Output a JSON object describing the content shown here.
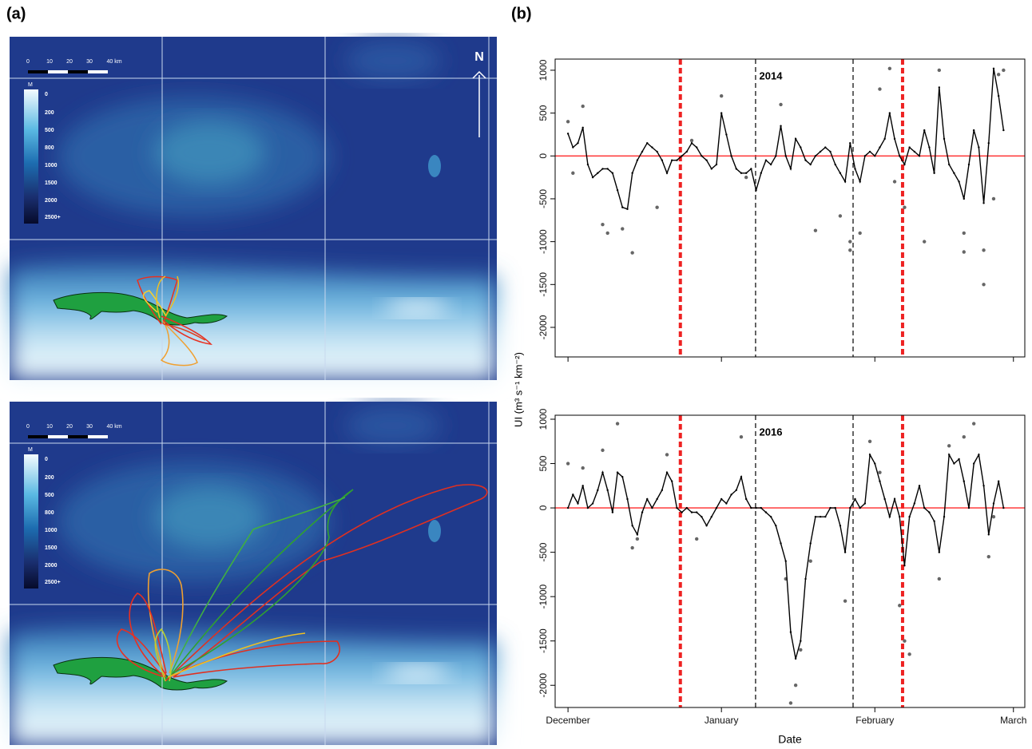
{
  "panel_labels": [
    "(a)",
    "(b)"
  ],
  "maps": [
    {
      "scale": [
        "0",
        "10",
        "20",
        "30",
        "40 km"
      ],
      "legend_title": "M",
      "legend": [
        "0",
        "200",
        "500",
        "800",
        "1000",
        "1500",
        "2000",
        "2500+"
      ],
      "north": "N"
    },
    {
      "scale": [
        "0",
        "10",
        "20",
        "30",
        "40 km"
      ],
      "legend_title": "M",
      "legend": [
        "0",
        "200",
        "500",
        "800",
        "1000",
        "1500",
        "2000",
        "2500+"
      ]
    }
  ],
  "chart_data": [
    {
      "type": "line",
      "title": "2014",
      "x": [
        0,
        1,
        2,
        3,
        4,
        5,
        6,
        7,
        8,
        9,
        10,
        11,
        12,
        13,
        14,
        15,
        16,
        17,
        18,
        19,
        20,
        21,
        22,
        23,
        24,
        25,
        26,
        27,
        28,
        29,
        30,
        31,
        32,
        33,
        34,
        35,
        36,
        37,
        38,
        39,
        40,
        41,
        42,
        43,
        44,
        45,
        46,
        47,
        48,
        49,
        50,
        51,
        52,
        53,
        54,
        55,
        56,
        57,
        58,
        59,
        60,
        61,
        62,
        63,
        64,
        65,
        66,
        67,
        68,
        69,
        70,
        71,
        72,
        73,
        74,
        75,
        76,
        77,
        78,
        79,
        80,
        81,
        82,
        83,
        84,
        85,
        86,
        87,
        88
      ],
      "values": [
        260,
        100,
        150,
        330,
        -100,
        -250,
        -200,
        -150,
        -150,
        -200,
        -400,
        -600,
        -620,
        -200,
        -50,
        50,
        150,
        100,
        50,
        -50,
        -200,
        -50,
        -50,
        0,
        50,
        150,
        100,
        0,
        -50,
        -150,
        -100,
        500,
        250,
        0,
        -150,
        -200,
        -200,
        -150,
        -400,
        -200,
        -50,
        -100,
        0,
        350,
        0,
        -150,
        200,
        100,
        -50,
        -100,
        0,
        50,
        100,
        50,
        -100,
        -200,
        -300,
        150,
        -150,
        -300,
        0,
        50,
        0,
        100,
        200,
        500,
        200,
        0,
        -100,
        100,
        50,
        0,
        300,
        100,
        -200,
        800,
        200,
        -100,
        -200,
        -300,
        -500,
        -100,
        300,
        100,
        -550,
        150,
        1020,
        700,
        300
      ],
      "color": "#000000",
      "points": {
        "color": "#666666",
        "x": [
          0,
          1,
          3,
          7,
          8,
          11,
          13,
          18,
          25,
          31,
          36,
          43,
          50,
          55,
          57,
          57,
          59,
          63,
          65,
          66,
          68,
          72,
          75,
          80,
          80,
          84,
          84,
          86,
          87,
          88
        ],
        "y": [
          400,
          -200,
          580,
          -800,
          -900,
          -850,
          -1130,
          -600,
          180,
          700,
          -250,
          600,
          -870,
          -700,
          -1100,
          -1000,
          -900,
          780,
          1020,
          -300,
          -600,
          -1000,
          1000,
          -1120,
          -900,
          -1500,
          -1100,
          -500,
          950,
          1000
        ]
      },
      "xlim": [
        -2.6,
        92.3
      ],
      "xticks": [
        0,
        31,
        62,
        90
      ],
      "ylim": [
        -2345,
        1130
      ],
      "yticks": [
        1000,
        500,
        0,
        -500,
        -1000,
        -1500,
        -2000
      ],
      "hline": {
        "value": 0,
        "color": "#ff2a2a"
      },
      "vlines": [
        {
          "x": 22.7,
          "color": "#ee2222",
          "width": 4
        },
        {
          "x": 37.9,
          "color": "#000000",
          "width": 1.2
        },
        {
          "x": 57.6,
          "color": "#000000",
          "width": 1.2
        },
        {
          "x": 67.6,
          "color": "#ee2222",
          "width": 4
        }
      ]
    },
    {
      "type": "line",
      "title": "2016",
      "x": [
        0,
        1,
        2,
        3,
        4,
        5,
        6,
        7,
        8,
        9,
        10,
        11,
        12,
        13,
        14,
        15,
        16,
        17,
        18,
        19,
        20,
        21,
        22,
        23,
        24,
        25,
        26,
        27,
        28,
        29,
        30,
        31,
        32,
        33,
        34,
        35,
        36,
        37,
        38,
        39,
        40,
        41,
        42,
        43,
        44,
        45,
        46,
        47,
        48,
        49,
        50,
        51,
        52,
        53,
        54,
        55,
        56,
        57,
        58,
        59,
        60,
        61,
        62,
        63,
        64,
        65,
        66,
        67,
        68,
        69,
        70,
        71,
        72,
        73,
        74,
        75,
        76,
        77,
        78,
        79,
        80,
        81,
        82,
        83,
        84,
        85,
        86,
        87,
        88
      ],
      "values": [
        0,
        150,
        50,
        250,
        0,
        50,
        200,
        400,
        200,
        -50,
        400,
        350,
        100,
        -200,
        -300,
        -50,
        100,
        0,
        100,
        200,
        400,
        300,
        0,
        -50,
        0,
        -50,
        -50,
        -100,
        -200,
        -100,
        0,
        100,
        50,
        150,
        200,
        350,
        100,
        0,
        0,
        0,
        -50,
        -100,
        -200,
        -400,
        -600,
        -1400,
        -1700,
        -1500,
        -800,
        -400,
        -100,
        -100,
        -100,
        0,
        0,
        -200,
        -500,
        0,
        100,
        0,
        50,
        600,
        500,
        300,
        100,
        -100,
        100,
        -100,
        -650,
        -100,
        50,
        250,
        0,
        -50,
        -150,
        -500,
        -100,
        600,
        500,
        550,
        300,
        0,
        500,
        600,
        250,
        -300,
        50,
        300,
        0
      ],
      "color": "#000000",
      "points": {
        "color": "#666666",
        "x": [
          0,
          3,
          7,
          10,
          13,
          14,
          20,
          26,
          35,
          44,
          45,
          46,
          47,
          49,
          56,
          61,
          63,
          68,
          67,
          69,
          75,
          77,
          80,
          82,
          85,
          86
        ],
        "y": [
          500,
          450,
          650,
          950,
          -450,
          -350,
          600,
          -350,
          800,
          -800,
          -2200,
          -2000,
          -1600,
          -600,
          -1050,
          750,
          400,
          -1500,
          -1100,
          -1650,
          -800,
          700,
          800,
          950,
          -550,
          -100
        ]
      },
      "xlim": [
        -2.6,
        92.3
      ],
      "xticks": [
        {
          "value": 0,
          "label": "December"
        },
        {
          "value": 31,
          "label": "January"
        },
        {
          "value": 62,
          "label": "February"
        },
        {
          "value": 90,
          "label": "March"
        }
      ],
      "ylim": [
        -2250,
        1045
      ],
      "yticks": [
        1000,
        500,
        0,
        -500,
        -1000,
        -1500,
        -2000
      ],
      "hline": {
        "value": 0,
        "color": "#ff2a2a"
      },
      "vlines": [
        {
          "x": 22.7,
          "color": "#ee2222",
          "width": 4
        },
        {
          "x": 37.9,
          "color": "#000000",
          "width": 1.2
        },
        {
          "x": 57.6,
          "color": "#000000",
          "width": 1.2
        },
        {
          "x": 67.6,
          "color": "#ee2222",
          "width": 4
        }
      ],
      "xlabel": "Date",
      "ylabel": "UI (m³ s⁻¹ km⁻²)"
    }
  ]
}
